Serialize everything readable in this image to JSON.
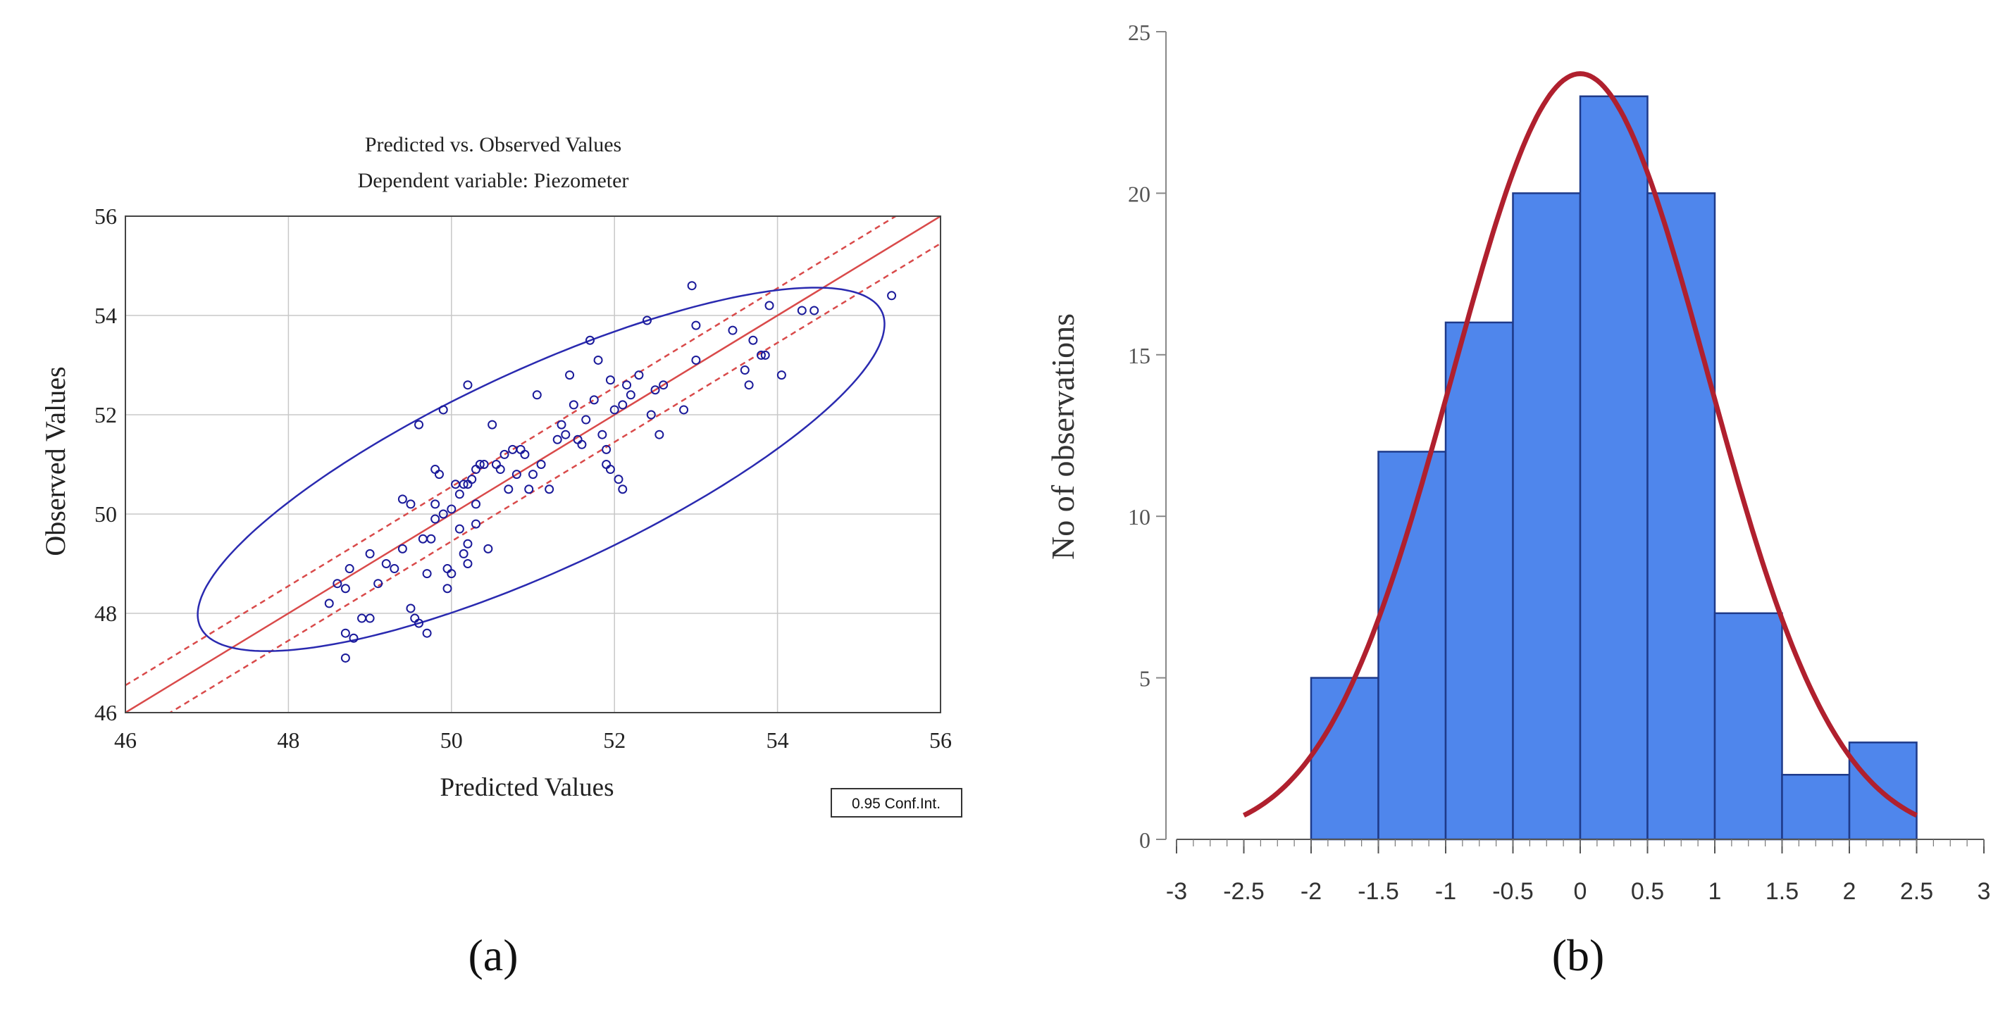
{
  "chart_data": [
    {
      "panel_label": "(a)",
      "type": "scatter",
      "title": "Predicted vs. Observed Values",
      "subtitle": "Dependent variable: Piezometer",
      "xlabel": "Predicted Values",
      "ylabel": "Observed Values",
      "xlim": [
        46,
        56
      ],
      "ylim": [
        46,
        56
      ],
      "xticks": [
        "46",
        "48",
        "50",
        "52",
        "54",
        "56"
      ],
      "yticks": [
        "46",
        "48",
        "50",
        "52",
        "54",
        "56"
      ],
      "grid": true,
      "legend_box": "0.95 Conf.Int.",
      "colors": {
        "points": "#1a1a9a",
        "fit": "#d94a4a",
        "ellipse": "#2a2ab0",
        "grid": "#c8c8c8"
      },
      "fit_line": {
        "slope": 1.0,
        "intercept": 0.0
      },
      "confidence_band": {
        "lower_intercept": -0.55,
        "upper_intercept": 0.55
      },
      "ellipse": {
        "center": [
          51.1,
          50.9
        ],
        "semi_axes": [
          5.3,
          1.75
        ],
        "angle_deg": 40
      },
      "points": [
        [
          48.5,
          48.2
        ],
        [
          48.6,
          48.6
        ],
        [
          48.7,
          48.5
        ],
        [
          48.75,
          48.9
        ],
        [
          48.7,
          47.6
        ],
        [
          48.8,
          47.5
        ],
        [
          48.7,
          47.1
        ],
        [
          48.9,
          47.9
        ],
        [
          49.0,
          47.9
        ],
        [
          49.0,
          49.2
        ],
        [
          49.1,
          48.6
        ],
        [
          49.2,
          49.0
        ],
        [
          49.3,
          48.9
        ],
        [
          49.4,
          49.3
        ],
        [
          49.4,
          50.3
        ],
        [
          49.5,
          50.2
        ],
        [
          49.5,
          48.1
        ],
        [
          49.55,
          47.9
        ],
        [
          49.6,
          47.8
        ],
        [
          49.6,
          51.8
        ],
        [
          49.65,
          49.5
        ],
        [
          49.7,
          48.8
        ],
        [
          49.7,
          47.6
        ],
        [
          49.75,
          49.5
        ],
        [
          49.8,
          50.2
        ],
        [
          49.8,
          49.9
        ],
        [
          49.8,
          50.9
        ],
        [
          49.85,
          50.8
        ],
        [
          49.9,
          50.0
        ],
        [
          49.9,
          52.1
        ],
        [
          49.95,
          48.9
        ],
        [
          49.95,
          48.5
        ],
        [
          50.0,
          50.1
        ],
        [
          50.0,
          48.8
        ],
        [
          50.05,
          50.6
        ],
        [
          50.1,
          49.7
        ],
        [
          50.1,
          50.4
        ],
        [
          50.15,
          50.6
        ],
        [
          50.15,
          49.2
        ],
        [
          50.2,
          50.6
        ],
        [
          50.2,
          49.4
        ],
        [
          50.2,
          49.0
        ],
        [
          50.2,
          52.6
        ],
        [
          50.25,
          50.7
        ],
        [
          50.3,
          50.2
        ],
        [
          50.3,
          49.8
        ],
        [
          50.3,
          50.9
        ],
        [
          50.35,
          51.0
        ],
        [
          50.4,
          51.0
        ],
        [
          50.45,
          49.3
        ],
        [
          50.5,
          51.8
        ],
        [
          50.55,
          51.0
        ],
        [
          50.6,
          50.9
        ],
        [
          50.65,
          51.2
        ],
        [
          50.7,
          50.5
        ],
        [
          50.75,
          51.3
        ],
        [
          50.8,
          50.8
        ],
        [
          50.85,
          51.3
        ],
        [
          50.9,
          51.2
        ],
        [
          50.95,
          50.5
        ],
        [
          51.0,
          50.8
        ],
        [
          51.05,
          52.4
        ],
        [
          51.1,
          51.0
        ],
        [
          51.2,
          50.5
        ],
        [
          51.3,
          51.5
        ],
        [
          51.35,
          51.8
        ],
        [
          51.4,
          51.6
        ],
        [
          51.45,
          52.8
        ],
        [
          51.5,
          52.2
        ],
        [
          51.55,
          51.5
        ],
        [
          51.6,
          51.4
        ],
        [
          51.65,
          51.9
        ],
        [
          51.7,
          53.5
        ],
        [
          51.75,
          52.3
        ],
        [
          51.8,
          53.1
        ],
        [
          51.85,
          51.6
        ],
        [
          51.9,
          51.3
        ],
        [
          51.9,
          51.0
        ],
        [
          51.95,
          50.9
        ],
        [
          51.95,
          52.7
        ],
        [
          52.0,
          52.1
        ],
        [
          52.05,
          50.7
        ],
        [
          52.1,
          50.5
        ],
        [
          52.1,
          52.2
        ],
        [
          52.15,
          52.6
        ],
        [
          52.2,
          52.4
        ],
        [
          52.3,
          52.8
        ],
        [
          52.4,
          53.9
        ],
        [
          52.45,
          52.0
        ],
        [
          52.5,
          52.5
        ],
        [
          52.55,
          51.6
        ],
        [
          52.6,
          52.6
        ],
        [
          52.85,
          52.1
        ],
        [
          52.95,
          54.6
        ],
        [
          53.0,
          53.1
        ],
        [
          53.0,
          53.8
        ],
        [
          53.45,
          53.7
        ],
        [
          53.6,
          52.9
        ],
        [
          53.65,
          52.6
        ],
        [
          53.7,
          53.5
        ],
        [
          53.8,
          53.2
        ],
        [
          53.85,
          53.2
        ],
        [
          53.9,
          54.2
        ],
        [
          54.05,
          52.8
        ],
        [
          54.3,
          54.1
        ],
        [
          54.45,
          54.1
        ],
        [
          55.4,
          54.4
        ]
      ]
    },
    {
      "panel_label": "(b)",
      "type": "bar",
      "ylabel": "No of observations",
      "xlim": [
        -3,
        3
      ],
      "ylim": [
        0,
        25
      ],
      "xticks": [
        "-3",
        "-2.5",
        "-2",
        "-1.5",
        "-1",
        "-0.5",
        "0",
        "0.5",
        "1",
        "1.5",
        "2",
        "2.5",
        "3"
      ],
      "yticks": [
        "0",
        "5",
        "10",
        "15",
        "20",
        "25"
      ],
      "bin_edges": [
        -2.0,
        -1.5,
        -1.0,
        -0.5,
        0.0,
        0.5,
        1.0,
        1.5,
        2.0,
        2.5
      ],
      "values": [
        5,
        12,
        16,
        20,
        23,
        20,
        7,
        2,
        3
      ],
      "colors": {
        "bars": "#4f86ec",
        "bar_edge": "#1e3a8a",
        "curve": "#b0202e",
        "axis": "#333333"
      },
      "normal_curve": {
        "mean": 0.0,
        "sd": 0.95,
        "peak": 23.7,
        "x_range": [
          -2.5,
          2.5
        ]
      }
    }
  ]
}
